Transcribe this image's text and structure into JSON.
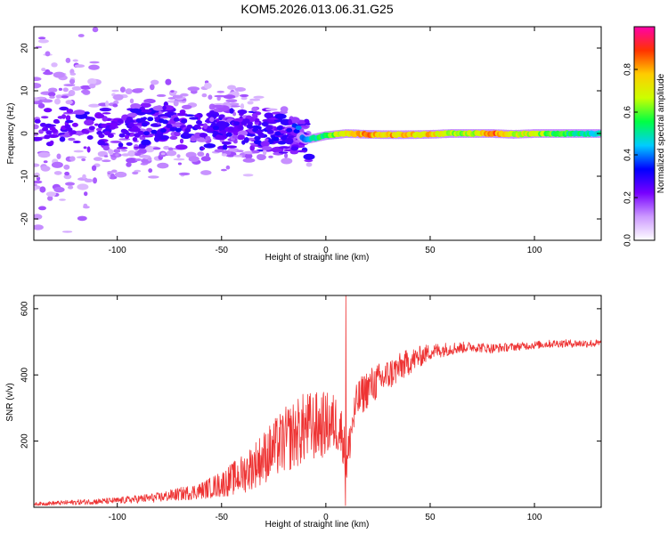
{
  "figure_title": "KOM5.2026.013.06.31.G25",
  "chart_data": [
    {
      "type": "heatmap",
      "name": "spectrogram",
      "xlabel": "Height of straight line (km)",
      "ylabel": "Frequency (Hz)",
      "xlim": [
        -140,
        132
      ],
      "ylim": [
        -25,
        25
      ],
      "xticks": [
        -100,
        -50,
        0,
        50,
        100
      ],
      "xtick_labels": [
        "-100",
        "-50",
        "0",
        "50",
        "100"
      ],
      "yticks": [
        -20,
        -10,
        0,
        10,
        20
      ],
      "ytick_labels": [
        "-20",
        "-10",
        "0",
        "10",
        "20"
      ],
      "colorbar": {
        "label": "Normalized spectral amplitude",
        "range": [
          0,
          1
        ],
        "ticks": [
          0.0,
          0.2,
          0.4,
          0.6,
          0.8
        ],
        "tick_labels": [
          "0.0",
          "0.2",
          "0.4",
          "0.6",
          "0.8"
        ],
        "colors": [
          "#ffffff",
          "#cc99ff",
          "#7700ff",
          "#0000ff",
          "#00ccff",
          "#00ff44",
          "#ccff00",
          "#ffcc00",
          "#ff3300",
          "#ff00aa"
        ]
      },
      "ridge_description": "Signal centered near 0 Hz; scattered low-amplitude (purple) blobs for heights below about -15 km, narrow high-amplitude line (green to red) from about -10 km to 132 km.",
      "ridge": [
        {
          "x": -100,
          "y": 1.0,
          "amp": 0.25
        },
        {
          "x": -80,
          "y": 2.0,
          "amp": 0.3
        },
        {
          "x": -60,
          "y": 1.5,
          "amp": 0.3
        },
        {
          "x": -40,
          "y": 1.0,
          "amp": 0.28
        },
        {
          "x": -25,
          "y": 0.5,
          "amp": 0.3
        },
        {
          "x": -15,
          "y": 0.5,
          "amp": 0.35
        },
        {
          "x": -10,
          "y": -1.5,
          "amp": 0.45
        },
        {
          "x": 0,
          "y": -0.5,
          "amp": 0.6
        },
        {
          "x": 10,
          "y": 0.0,
          "amp": 0.75
        },
        {
          "x": 20,
          "y": -0.2,
          "amp": 0.85
        },
        {
          "x": 35,
          "y": -0.3,
          "amp": 0.8
        },
        {
          "x": 50,
          "y": -0.2,
          "amp": 0.78
        },
        {
          "x": 60,
          "y": 0.0,
          "amp": 0.7
        },
        {
          "x": 70,
          "y": 0.0,
          "amp": 0.68
        },
        {
          "x": 80,
          "y": 0.0,
          "amp": 0.9
        },
        {
          "x": 90,
          "y": -0.2,
          "amp": 0.72
        },
        {
          "x": 100,
          "y": 0.0,
          "amp": 0.7
        },
        {
          "x": 110,
          "y": 0.0,
          "amp": 0.6
        },
        {
          "x": 120,
          "y": 0.0,
          "amp": 0.55
        },
        {
          "x": 130,
          "y": 0.0,
          "amp": 0.5
        }
      ]
    },
    {
      "type": "line",
      "name": "snr",
      "xlabel": "Height of straight line (km)",
      "ylabel": "SNR (v/v)",
      "xlim": [
        -140,
        132
      ],
      "ylim": [
        0,
        640
      ],
      "xticks": [
        -100,
        -50,
        0,
        50,
        100
      ],
      "xtick_labels": [
        "-100",
        "-50",
        "0",
        "50",
        "100"
      ],
      "yticks": [
        200,
        400,
        600
      ],
      "ytick_labels": [
        "200",
        "400",
        "600"
      ],
      "color": "#ee3333",
      "series": [
        {
          "name": "SNR",
          "trend_x": [
            -140,
            -120,
            -100,
            -80,
            -60,
            -50,
            -40,
            -30,
            -20,
            -10,
            0,
            5,
            8,
            10,
            12,
            15,
            20,
            30,
            40,
            50,
            60,
            70,
            80,
            90,
            100,
            110,
            120,
            130
          ],
          "trend_y": [
            10,
            15,
            20,
            30,
            50,
            70,
            100,
            150,
            200,
            240,
            250,
            255,
            220,
            120,
            230,
            320,
            360,
            400,
            440,
            470,
            480,
            485,
            480,
            485,
            490,
            495,
            495,
            495
          ],
          "noise_amplitude": [
            5,
            8,
            10,
            15,
            25,
            40,
            60,
            80,
            100,
            110,
            100,
            90,
            80,
            60,
            70,
            60,
            60,
            50,
            40,
            25,
            20,
            15,
            15,
            12,
            12,
            12,
            12,
            12
          ],
          "spike": {
            "x": 9.5,
            "low": 5,
            "high": 640
          }
        }
      ]
    }
  ]
}
